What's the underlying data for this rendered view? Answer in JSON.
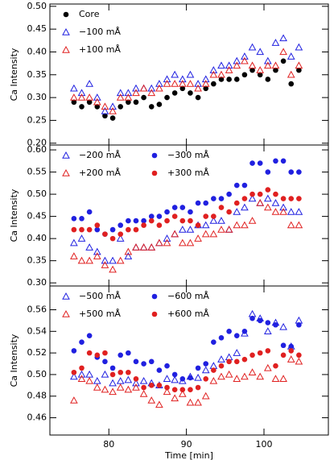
{
  "chart_data": [
    {
      "type": "scatter",
      "ylabel": "Ca Intensity",
      "xlim": [
        72.4,
        108.3
      ],
      "xticks": [
        80,
        90,
        100
      ],
      "tick_labels": false,
      "ylim": [
        0.196,
        0.505
      ],
      "yticks": [
        {
          "value": 0.2,
          "label": "0.20"
        },
        0.25,
        {
          "value": 0.3,
          "label": "0.30"
        },
        0.35,
        {
          "value": 0.4,
          "label": "0.40"
        },
        0.45,
        {
          "value": 0.5,
          "label": "0.50"
        }
      ],
      "legend_columns": 1,
      "x": [
        75.5,
        76.5,
        77.5,
        78.5,
        79.5,
        80.5,
        81.5,
        82.5,
        83.5,
        84.5,
        85.5,
        86.5,
        87.5,
        88.5,
        89.5,
        90.5,
        91.5,
        92.5,
        93.5,
        94.5,
        95.5,
        96.5,
        97.5,
        98.5,
        99.5,
        100.5,
        101.5,
        102.5,
        103.5,
        104.5
      ],
      "series": [
        {
          "name": "Core",
          "color": "#000000",
          "marker": "circle",
          "values": [
            0.29,
            0.28,
            0.29,
            0.28,
            0.26,
            0.255,
            0.28,
            0.29,
            0.29,
            0.3,
            0.28,
            0.285,
            0.3,
            0.31,
            0.32,
            0.31,
            0.3,
            0.32,
            0.33,
            0.34,
            0.34,
            0.34,
            0.35,
            0.36,
            0.35,
            0.34,
            0.36,
            0.38,
            0.33,
            0.36
          ]
        },
        {
          "name": "−100 mÅ",
          "color": "#2020e0",
          "marker": "triangle",
          "values": [
            0.32,
            0.31,
            0.33,
            0.3,
            0.27,
            0.28,
            0.31,
            0.31,
            0.32,
            0.32,
            0.32,
            0.33,
            0.34,
            0.35,
            0.34,
            0.35,
            0.33,
            0.34,
            0.36,
            0.37,
            0.37,
            0.38,
            0.39,
            0.41,
            0.4,
            0.38,
            0.42,
            0.43,
            0.39,
            0.41
          ]
        },
        {
          "name": "+100 mÅ",
          "color": "#e02020",
          "marker": "triangle",
          "values": [
            0.3,
            0.3,
            0.3,
            0.29,
            0.28,
            0.27,
            0.3,
            0.3,
            0.31,
            0.32,
            0.31,
            0.32,
            0.33,
            0.33,
            0.33,
            0.33,
            0.32,
            0.33,
            0.35,
            0.35,
            0.36,
            0.37,
            0.38,
            0.37,
            0.36,
            0.37,
            0.37,
            0.4,
            0.35,
            0.37
          ]
        }
      ]
    },
    {
      "type": "scatter",
      "ylabel": "Ca Intensity",
      "xlim": [
        72.4,
        108.3
      ],
      "xticks": [
        80,
        90,
        100
      ],
      "tick_labels": false,
      "ylim": [
        0.293,
        0.611
      ],
      "yticks": [
        {
          "value": 0.3,
          "label": "0.30"
        },
        0.35,
        {
          "value": 0.4,
          "label": "0.40"
        },
        0.45,
        {
          "value": 0.5,
          "label": "0.50"
        },
        0.55,
        {
          "value": 0.6,
          "label": "0.60"
        }
      ],
      "legend_columns": 2,
      "x": [
        75.5,
        76.5,
        77.5,
        78.5,
        79.5,
        80.5,
        81.5,
        82.5,
        83.5,
        84.5,
        85.5,
        86.5,
        87.5,
        88.5,
        89.5,
        90.5,
        91.5,
        92.5,
        93.5,
        94.5,
        95.5,
        96.5,
        97.5,
        98.5,
        99.5,
        100.5,
        101.5,
        102.5,
        103.5,
        104.5
      ],
      "series": [
        {
          "name": "−200 mÅ",
          "color": "#2020e0",
          "marker": "triangle",
          "values": [
            0.39,
            0.4,
            0.38,
            0.37,
            0.35,
            0.35,
            0.4,
            0.36,
            0.38,
            0.38,
            0.38,
            0.39,
            0.4,
            0.41,
            0.42,
            0.42,
            0.43,
            0.43,
            0.44,
            0.44,
            0.42,
            0.46,
            0.47,
            0.49,
            0.48,
            0.49,
            0.48,
            0.47,
            0.46,
            0.46
          ]
        },
        {
          "name": "−300 mÅ",
          "color": "#2020e0",
          "marker": "circle",
          "values": [
            0.445,
            0.445,
            0.46,
            0.42,
            0.41,
            0.42,
            0.43,
            0.44,
            0.44,
            0.44,
            0.45,
            0.45,
            0.46,
            0.47,
            0.47,
            0.46,
            0.48,
            0.48,
            0.49,
            0.49,
            0.5,
            0.52,
            0.52,
            0.57,
            0.57,
            0.55,
            0.575,
            0.575,
            0.55,
            0.55
          ]
        },
        {
          "name": "+200 mÅ",
          "color": "#e02020",
          "marker": "triangle",
          "values": [
            0.36,
            0.35,
            0.35,
            0.36,
            0.34,
            0.33,
            0.35,
            0.37,
            0.38,
            0.38,
            0.38,
            0.39,
            0.39,
            0.41,
            0.39,
            0.39,
            0.4,
            0.41,
            0.41,
            0.42,
            0.42,
            0.43,
            0.43,
            0.44,
            0.48,
            0.47,
            0.46,
            0.46,
            0.43,
            0.43
          ]
        },
        {
          "name": "+300 mÅ",
          "color": "#e02020",
          "marker": "circle",
          "values": [
            0.42,
            0.42,
            0.42,
            0.43,
            0.41,
            0.4,
            0.41,
            0.42,
            0.42,
            0.43,
            0.44,
            0.43,
            0.44,
            0.45,
            0.44,
            0.44,
            0.43,
            0.45,
            0.45,
            0.47,
            0.46,
            0.48,
            0.49,
            0.5,
            0.5,
            0.51,
            0.5,
            0.49,
            0.49,
            0.49
          ]
        }
      ]
    },
    {
      "type": "scatter",
      "ylabel": "Ca Intensity",
      "xlabel": "Time [min]",
      "xlim": [
        72.4,
        108.3
      ],
      "xticks": [
        80,
        90,
        100
      ],
      "tick_labels": true,
      "ylim": [
        0.444,
        0.582
      ],
      "yticks": [
        0.46,
        0.48,
        {
          "value": 0.5,
          "label": "0.50"
        },
        0.52,
        0.54,
        0.56
      ],
      "legend_columns": 2,
      "x": [
        75.5,
        76.5,
        77.5,
        78.5,
        79.5,
        80.5,
        81.5,
        82.5,
        83.5,
        84.5,
        85.5,
        86.5,
        87.5,
        88.5,
        89.5,
        90.5,
        91.5,
        92.5,
        93.5,
        94.5,
        95.5,
        96.5,
        97.5,
        98.5,
        99.5,
        100.5,
        101.5,
        102.5,
        103.5,
        104.5
      ],
      "series": [
        {
          "name": "−500 mÅ",
          "color": "#2020e0",
          "marker": "triangle",
          "values": [
            0.498,
            0.5,
            0.5,
            0.494,
            0.5,
            0.492,
            0.494,
            0.495,
            0.492,
            0.494,
            0.492,
            0.49,
            0.496,
            0.495,
            0.494,
            0.498,
            0.497,
            0.504,
            0.508,
            0.514,
            0.516,
            0.52,
            0.538,
            0.556,
            0.552,
            0.54,
            0.548,
            0.544,
            0.526,
            0.55
          ]
        },
        {
          "name": "−600 mÅ",
          "color": "#2020e0",
          "marker": "circle",
          "values": [
            0.522,
            0.53,
            0.536,
            0.516,
            0.512,
            0.506,
            0.518,
            0.52,
            0.512,
            0.51,
            0.512,
            0.504,
            0.508,
            0.5,
            0.496,
            0.497,
            0.506,
            0.51,
            0.53,
            0.534,
            0.54,
            0.536,
            0.54,
            0.552,
            0.55,
            0.548,
            0.546,
            0.527,
            0.526,
            0.546
          ]
        },
        {
          "name": "+500 mÅ",
          "color": "#e02020",
          "marker": "triangle",
          "values": [
            0.476,
            0.496,
            0.494,
            0.488,
            0.486,
            0.484,
            0.488,
            0.486,
            0.488,
            0.482,
            0.476,
            0.472,
            0.484,
            0.478,
            0.482,
            0.474,
            0.474,
            0.48,
            0.494,
            0.498,
            0.5,
            0.496,
            0.498,
            0.502,
            0.498,
            0.506,
            0.496,
            0.496,
            0.514,
            0.512
          ]
        },
        {
          "name": "+600 mÅ",
          "color": "#e02020",
          "marker": "circle",
          "values": [
            0.502,
            0.506,
            0.52,
            0.518,
            0.52,
            0.5,
            0.502,
            0.502,
            0.496,
            0.488,
            0.49,
            0.49,
            0.488,
            0.486,
            0.486,
            0.486,
            0.488,
            0.496,
            0.504,
            0.508,
            0.512,
            0.512,
            0.514,
            0.518,
            0.52,
            0.522,
            0.508,
            0.518,
            0.522,
            0.518
          ]
        }
      ]
    }
  ]
}
